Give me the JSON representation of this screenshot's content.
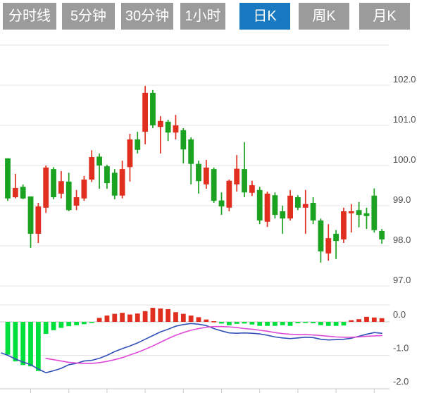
{
  "tabs": {
    "items": [
      {
        "label": "分时线",
        "active": false
      },
      {
        "label": "5分钟",
        "active": false
      },
      {
        "label": "30分钟",
        "active": false
      },
      {
        "label": "1小时",
        "active": false
      },
      {
        "label": "日K",
        "active": true
      },
      {
        "label": "周K",
        "active": false
      },
      {
        "label": "月K",
        "active": false
      }
    ]
  },
  "colors": {
    "tab_bg": "#9b9b9b",
    "tab_active_bg": "#1879c0",
    "tab_text": "#ffffff",
    "candle_up": "#e02f1f",
    "candle_down": "#1aa220",
    "hist_up": "#e02f1f",
    "hist_down": "#00e03c",
    "dif_line": "#3050b8",
    "dea_line": "#e048d8",
    "grid": "#e3e3e3",
    "axis": "#c9c9c9",
    "label": "#4d4d4d",
    "background": "#ffffff"
  },
  "chart_data": {
    "type": "candlestick",
    "title": "",
    "legend_position": "none",
    "grid": true,
    "price_axis": {
      "side": "right",
      "range": [
        96.8,
        103.0
      ],
      "unlabeled_top_gridline": 103.0,
      "ticks": [
        {
          "value": 102.0,
          "label": "102.0"
        },
        {
          "value": 101.0,
          "label": "101.0"
        },
        {
          "value": 100.0,
          "label": "100.0"
        },
        {
          "value": 99.0,
          "label": "99.0"
        },
        {
          "value": 98.0,
          "label": "98.0"
        },
        {
          "value": 97.0,
          "label": "97.0"
        }
      ]
    },
    "macd_axis": {
      "side": "right",
      "range": [
        -2.0,
        0.3
      ],
      "ticks": [
        {
          "value": 0.0,
          "label": "0.0"
        },
        {
          "value": -1.0,
          "label": "-1.0"
        },
        {
          "value": -2.0,
          "label": "-2.0"
        }
      ]
    },
    "candles": [
      {
        "o": 100.18,
        "h": 100.18,
        "l": 99.12,
        "c": 99.18
      },
      {
        "o": 99.21,
        "h": 99.79,
        "l": 99.18,
        "c": 99.44
      },
      {
        "o": 99.47,
        "h": 99.53,
        "l": 99.16,
        "c": 99.18
      },
      {
        "o": 99.23,
        "h": 99.23,
        "l": 97.95,
        "c": 98.3
      },
      {
        "o": 98.3,
        "h": 99.07,
        "l": 98.07,
        "c": 98.98
      },
      {
        "o": 98.95,
        "h": 100.0,
        "l": 98.82,
        "c": 99.95
      },
      {
        "o": 99.91,
        "h": 99.96,
        "l": 99.16,
        "c": 99.21
      },
      {
        "o": 99.3,
        "h": 99.86,
        "l": 99.18,
        "c": 99.61
      },
      {
        "o": 99.6,
        "h": 99.82,
        "l": 98.86,
        "c": 98.89
      },
      {
        "o": 99.0,
        "h": 99.39,
        "l": 98.89,
        "c": 99.21
      },
      {
        "o": 99.18,
        "h": 99.74,
        "l": 99.12,
        "c": 99.65
      },
      {
        "o": 99.65,
        "h": 100.38,
        "l": 99.59,
        "c": 100.21
      },
      {
        "o": 100.22,
        "h": 100.3,
        "l": 99.42,
        "c": 100.0
      },
      {
        "o": 99.98,
        "h": 100.02,
        "l": 99.42,
        "c": 99.56
      },
      {
        "o": 99.82,
        "h": 99.91,
        "l": 99.16,
        "c": 99.25
      },
      {
        "o": 99.25,
        "h": 100.12,
        "l": 99.18,
        "c": 99.91
      },
      {
        "o": 99.96,
        "h": 100.79,
        "l": 99.6,
        "c": 100.65
      },
      {
        "o": 100.65,
        "h": 100.84,
        "l": 100.3,
        "c": 100.39
      },
      {
        "o": 100.84,
        "h": 101.98,
        "l": 100.53,
        "c": 101.81
      },
      {
        "o": 101.81,
        "h": 101.88,
        "l": 100.93,
        "c": 101.0
      },
      {
        "o": 100.96,
        "h": 101.23,
        "l": 100.3,
        "c": 101.11
      },
      {
        "o": 101.09,
        "h": 101.14,
        "l": 100.61,
        "c": 100.82
      },
      {
        "o": 100.82,
        "h": 101.26,
        "l": 100.65,
        "c": 101.0
      },
      {
        "o": 100.88,
        "h": 100.93,
        "l": 100.05,
        "c": 100.4
      },
      {
        "o": 100.65,
        "h": 100.7,
        "l": 99.53,
        "c": 100.04
      },
      {
        "o": 100.04,
        "h": 100.12,
        "l": 99.3,
        "c": 99.61
      },
      {
        "o": 99.53,
        "h": 100.14,
        "l": 99.42,
        "c": 99.95
      },
      {
        "o": 99.91,
        "h": 99.95,
        "l": 99.07,
        "c": 99.12
      },
      {
        "o": 99.13,
        "h": 99.33,
        "l": 98.77,
        "c": 98.98
      },
      {
        "o": 98.95,
        "h": 99.65,
        "l": 98.86,
        "c": 99.62
      },
      {
        "o": 99.53,
        "h": 100.26,
        "l": 99.35,
        "c": 99.92
      },
      {
        "o": 99.91,
        "h": 100.58,
        "l": 99.21,
        "c": 99.33
      },
      {
        "o": 99.32,
        "h": 99.62,
        "l": 99.24,
        "c": 99.51
      },
      {
        "o": 99.39,
        "h": 99.47,
        "l": 98.54,
        "c": 98.63
      },
      {
        "o": 98.6,
        "h": 99.35,
        "l": 98.47,
        "c": 99.3
      },
      {
        "o": 99.26,
        "h": 99.33,
        "l": 98.68,
        "c": 98.77
      },
      {
        "o": 98.86,
        "h": 99.0,
        "l": 98.3,
        "c": 98.68
      },
      {
        "o": 98.68,
        "h": 99.39,
        "l": 98.63,
        "c": 99.25
      },
      {
        "o": 99.21,
        "h": 99.26,
        "l": 98.89,
        "c": 98.95
      },
      {
        "o": 98.95,
        "h": 99.39,
        "l": 98.3,
        "c": 99.04
      },
      {
        "o": 99.07,
        "h": 99.21,
        "l": 98.54,
        "c": 98.63
      },
      {
        "o": 98.63,
        "h": 98.68,
        "l": 97.58,
        "c": 97.86
      },
      {
        "o": 97.81,
        "h": 98.54,
        "l": 97.63,
        "c": 98.19
      },
      {
        "o": 98.3,
        "h": 98.39,
        "l": 97.67,
        "c": 98.12
      },
      {
        "o": 98.16,
        "h": 98.95,
        "l": 98.07,
        "c": 98.86
      },
      {
        "o": 98.81,
        "h": 99.04,
        "l": 98.33,
        "c": 98.86
      },
      {
        "o": 98.89,
        "h": 99.09,
        "l": 98.46,
        "c": 98.77
      },
      {
        "o": 98.81,
        "h": 98.95,
        "l": 98.42,
        "c": 98.74
      },
      {
        "o": 99.25,
        "h": 99.43,
        "l": 98.33,
        "c": 98.39
      },
      {
        "o": 98.37,
        "h": 98.42,
        "l": 98.05,
        "c": 98.16
      }
    ],
    "macd": {
      "hist": [
        -0.98,
        -1.18,
        -1.29,
        -1.33,
        -1.47,
        -0.36,
        -0.25,
        -0.18,
        -0.13,
        -0.1,
        -0.07,
        -0.03,
        0.12,
        0.19,
        0.24,
        0.27,
        0.22,
        0.25,
        0.32,
        0.42,
        0.4,
        0.38,
        0.29,
        0.24,
        0.19,
        0.14,
        0.07,
        0.02,
        -0.05,
        -0.1,
        -0.06,
        -0.05,
        -0.08,
        -0.12,
        -0.12,
        -0.12,
        -0.1,
        -0.12,
        -0.04,
        -0.02,
        -0.04,
        -0.1,
        -0.12,
        -0.12,
        -0.11,
        0.05,
        0.08,
        0.15,
        0.13,
        0.11
      ],
      "dif_lead_in": -0.93,
      "dif": [
        -1.0,
        -1.11,
        -1.2,
        -1.28,
        -1.41,
        -1.52,
        -1.46,
        -1.39,
        -1.28,
        -1.24,
        -1.17,
        -1.15,
        -1.09,
        -1.0,
        -0.89,
        -0.8,
        -0.72,
        -0.63,
        -0.52,
        -0.41,
        -0.3,
        -0.22,
        -0.13,
        -0.08,
        -0.05,
        -0.07,
        -0.11,
        -0.2,
        -0.27,
        -0.33,
        -0.34,
        -0.33,
        -0.34,
        -0.36,
        -0.4,
        -0.45,
        -0.48,
        -0.5,
        -0.48,
        -0.46,
        -0.47,
        -0.52,
        -0.54,
        -0.53,
        -0.52,
        -0.49,
        -0.43,
        -0.37,
        -0.32,
        -0.34
      ],
      "dea": [
        null,
        null,
        null,
        null,
        null,
        -1.09,
        -1.13,
        -1.17,
        -1.21,
        -1.23,
        -1.24,
        -1.24,
        -1.22,
        -1.18,
        -1.13,
        -1.07,
        -0.99,
        -0.91,
        -0.82,
        -0.72,
        -0.61,
        -0.5,
        -0.4,
        -0.32,
        -0.25,
        -0.2,
        -0.16,
        -0.14,
        -0.14,
        -0.15,
        -0.17,
        -0.2,
        -0.22,
        -0.25,
        -0.28,
        -0.32,
        -0.35,
        -0.37,
        -0.38,
        -0.38,
        -0.39,
        -0.41,
        -0.43,
        -0.45,
        -0.46,
        -0.46,
        -0.45,
        -0.43,
        -0.42,
        -0.41
      ]
    }
  }
}
